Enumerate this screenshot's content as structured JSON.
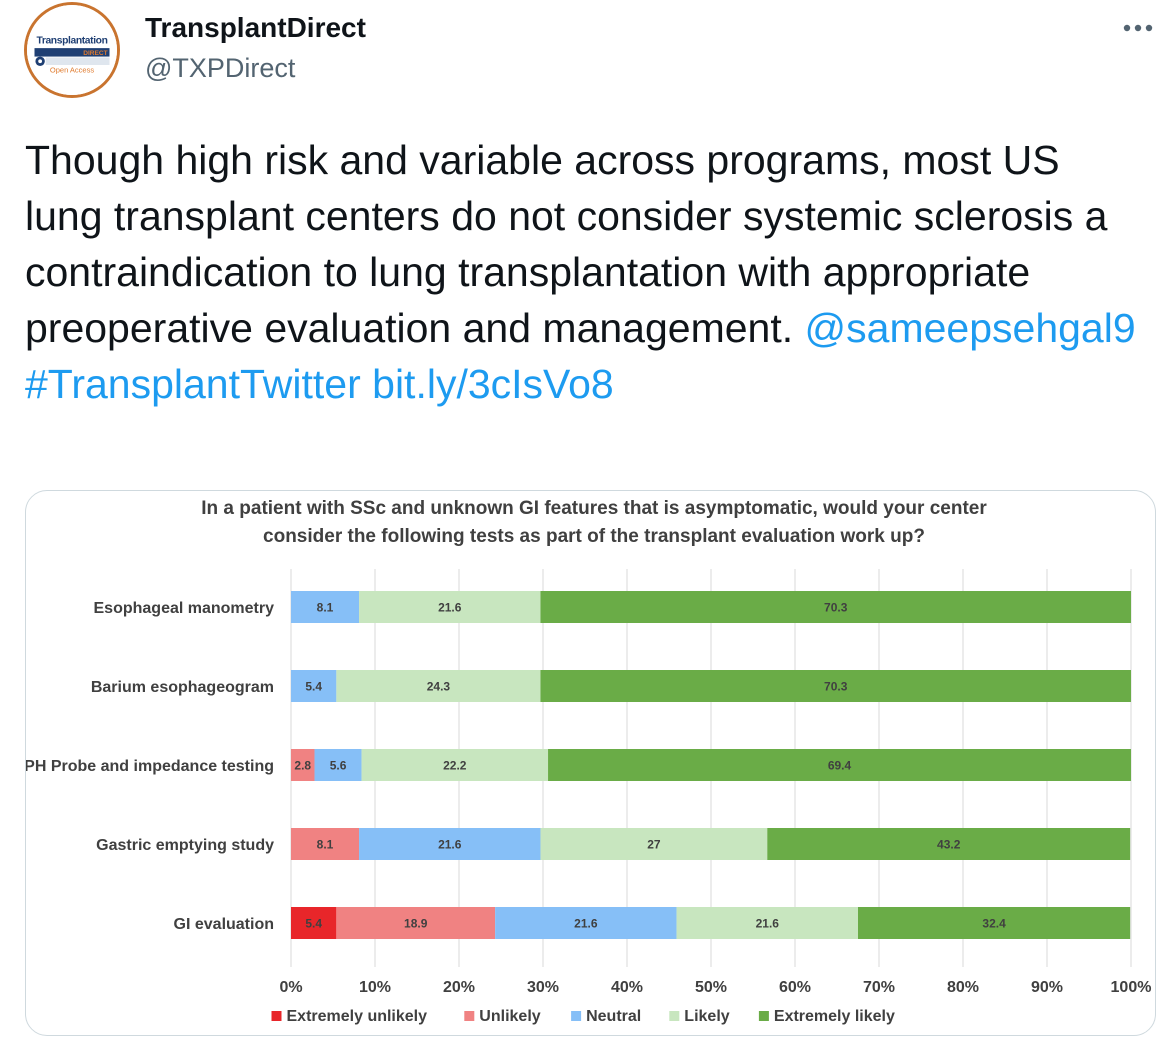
{
  "account": {
    "display_name": "TransplantDirect",
    "handle": "@TXPDirect",
    "avatar": {
      "logo_text": "Transplantation",
      "logo_subtext": "DIRECT",
      "logo_caption": "Open Access",
      "colors": {
        "ring": "#c9742f",
        "navy": "#1f3f73",
        "orange": "#e07b2e"
      }
    }
  },
  "more_icon": "more-horizontal-icon",
  "tweet": {
    "text": "Though high risk and variable across programs, most US lung transplant centers do not consider systemic sclerosis a contraindication to lung transplantation with appropriate preoperative evaluation and management. ",
    "mention": "@sameepsehgal9",
    "hashtag": "#TransplantTwitter",
    "link": "bit.ly/3cIsVo8",
    "link_color": "#1d9bf0"
  },
  "chart_data": {
    "type": "bar",
    "orientation": "horizontal",
    "stacked": true,
    "title_lines": [
      "In a patient with SSc and unknown GI features that is asymptomatic, would your center",
      "consider the following tests as part of the transplant evaluation work up?"
    ],
    "categories": [
      "Esophageal  manometry",
      "Barium esophageogram",
      "PH Probe and impedance testing",
      "Gastric emptying study",
      "GI evaluation"
    ],
    "series": [
      {
        "name": "Extremely unlikely",
        "color": "#e8262a",
        "values": [
          0,
          0,
          0,
          0,
          5.4
        ]
      },
      {
        "name": "Unlikely",
        "color": "#f08282",
        "values": [
          0,
          0,
          2.8,
          8.1,
          18.9
        ]
      },
      {
        "name": "Neutral",
        "color": "#86bff7",
        "values": [
          8.1,
          5.4,
          5.6,
          21.6,
          21.6
        ]
      },
      {
        "name": "Likely",
        "color": "#c8e6bf",
        "values": [
          21.6,
          24.3,
          22.2,
          27,
          21.6
        ]
      },
      {
        "name": "Extremely likely",
        "color": "#6aac47",
        "values": [
          70.3,
          70.3,
          69.4,
          43.2,
          32.4
        ]
      }
    ],
    "x_ticks": [
      "0%",
      "10%",
      "20%",
      "30%",
      "40%",
      "50%",
      "60%",
      "70%",
      "80%",
      "90%",
      "100%"
    ],
    "xlim": [
      0,
      100
    ],
    "grid": true,
    "legend_position": "bottom"
  }
}
